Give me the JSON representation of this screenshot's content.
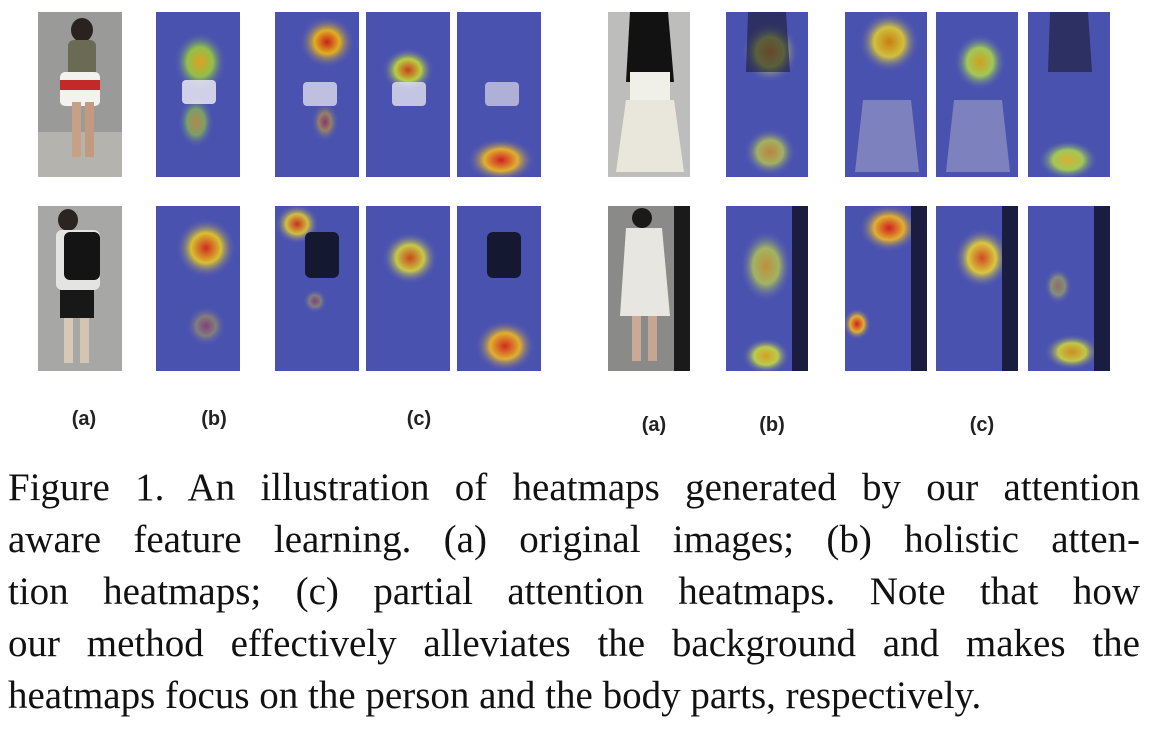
{
  "figure": {
    "left_group": {
      "labels": [
        "(a)",
        "(b)",
        "(c)"
      ]
    },
    "right_group": {
      "labels": [
        "(a)",
        "(b)",
        "(c)"
      ]
    },
    "caption_lines": [
      "Figure 1. An illustration of heatmaps generated by our attention",
      "aware feature learning.  (a) original images; (b) holistic atten-",
      "tion heatmaps; (c) partial attention heatmaps.  Note that how",
      "our method effectively alleviates the background and makes the",
      "heatmaps focus on the person and the body parts, respectively."
    ]
  }
}
